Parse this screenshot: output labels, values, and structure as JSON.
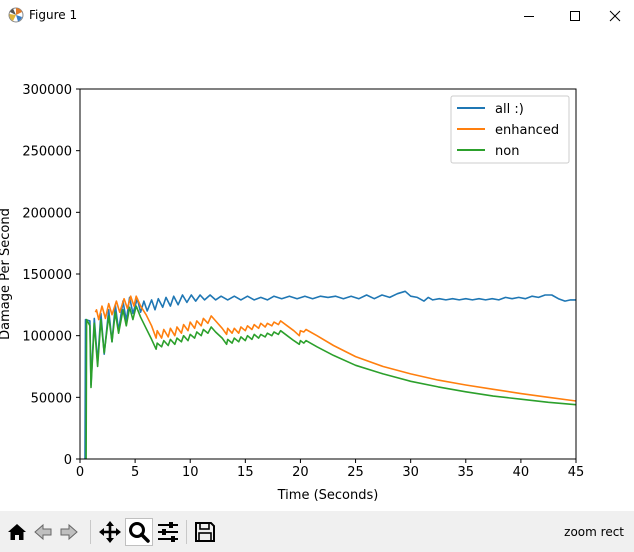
{
  "window": {
    "title": "Figure 1",
    "icons": {
      "app": "matplotlib-icon",
      "minimize": "minimize-icon",
      "maximize": "maximize-icon",
      "close": "close-icon"
    }
  },
  "toolbar": {
    "items": [
      {
        "name": "home",
        "icon": "home-icon"
      },
      {
        "name": "back",
        "icon": "back-arrow-icon"
      },
      {
        "name": "forward",
        "icon": "forward-arrow-icon"
      },
      {
        "name": "pan",
        "icon": "move-arrows-icon"
      },
      {
        "name": "zoom",
        "icon": "magnifier-icon",
        "active": true
      },
      {
        "name": "configure",
        "icon": "sliders-icon"
      },
      {
        "name": "save",
        "icon": "floppy-disk-icon"
      }
    ],
    "status": "zoom rect"
  },
  "chart_data": {
    "type": "line",
    "title": "",
    "xlabel": "Time (Seconds)",
    "ylabel": "Damage Per Second",
    "xlim": [
      0,
      45
    ],
    "ylim": [
      0,
      300000
    ],
    "xticks": [
      0,
      5,
      10,
      15,
      20,
      25,
      30,
      35,
      40,
      45
    ],
    "yticks": [
      0,
      50000,
      100000,
      150000,
      200000,
      250000,
      300000
    ],
    "grid": false,
    "legend_position": "top-right",
    "series": [
      {
        "name": "all :)",
        "color": "#1f77b4",
        "points": [
          [
            0.45,
            0
          ],
          [
            0.5,
            113000
          ],
          [
            0.9,
            112000
          ],
          [
            1.0,
            60000
          ],
          [
            1.3,
            114000
          ],
          [
            1.6,
            78000
          ],
          [
            1.9,
            118000
          ],
          [
            2.2,
            85000
          ],
          [
            2.6,
            121000
          ],
          [
            2.9,
            95000
          ],
          [
            3.2,
            125000
          ],
          [
            3.5,
            104000
          ],
          [
            3.9,
            128000
          ],
          [
            4.2,
            112000
          ],
          [
            4.5,
            131000
          ],
          [
            4.8,
            118000
          ],
          [
            5.2,
            130000
          ],
          [
            5.5,
            119000
          ],
          [
            5.8,
            128000
          ],
          [
            6.1,
            120000
          ],
          [
            6.5,
            129000
          ],
          [
            6.8,
            121000
          ],
          [
            7.1,
            130000
          ],
          [
            7.5,
            123000
          ],
          [
            7.8,
            131000
          ],
          [
            8.2,
            124000
          ],
          [
            8.5,
            132000
          ],
          [
            8.9,
            125000
          ],
          [
            9.3,
            133000
          ],
          [
            9.7,
            127000
          ],
          [
            10.1,
            133000
          ],
          [
            10.5,
            128000
          ],
          [
            10.9,
            133000
          ],
          [
            11.3,
            129000
          ],
          [
            11.8,
            133000
          ],
          [
            12.3,
            129000
          ],
          [
            12.8,
            132000
          ],
          [
            13.4,
            129000
          ],
          [
            14.0,
            132000
          ],
          [
            14.6,
            129000
          ],
          [
            15.2,
            132000
          ],
          [
            15.8,
            129000
          ],
          [
            16.4,
            131000
          ],
          [
            17.0,
            129000
          ],
          [
            17.6,
            132000
          ],
          [
            18.3,
            130000
          ],
          [
            19.0,
            132000
          ],
          [
            19.7,
            130000
          ],
          [
            20.4,
            132000
          ],
          [
            21.1,
            130000
          ],
          [
            21.8,
            132000
          ],
          [
            22.5,
            131000
          ],
          [
            23.2,
            132000
          ],
          [
            23.9,
            130000
          ],
          [
            24.6,
            132000
          ],
          [
            25.3,
            130000
          ],
          [
            26.0,
            133000
          ],
          [
            26.7,
            130000
          ],
          [
            27.4,
            133000
          ],
          [
            28.1,
            131000
          ],
          [
            28.8,
            134000
          ],
          [
            29.5,
            136000
          ],
          [
            30.0,
            132000
          ],
          [
            30.6,
            131000
          ],
          [
            31.2,
            128000
          ],
          [
            31.6,
            131000
          ],
          [
            32.0,
            129000
          ],
          [
            32.6,
            130000
          ],
          [
            33.2,
            129000
          ],
          [
            33.8,
            130000
          ],
          [
            34.4,
            129000
          ],
          [
            35.0,
            130000
          ],
          [
            35.6,
            129000
          ],
          [
            36.2,
            130000
          ],
          [
            36.8,
            129000
          ],
          [
            37.4,
            130000
          ],
          [
            38.0,
            129000
          ],
          [
            38.6,
            131000
          ],
          [
            39.2,
            130000
          ],
          [
            39.8,
            131000
          ],
          [
            40.4,
            130000
          ],
          [
            41.0,
            132000
          ],
          [
            41.6,
            131000
          ],
          [
            42.2,
            133000
          ],
          [
            42.8,
            133000
          ],
          [
            43.4,
            130000
          ],
          [
            44.0,
            128000
          ],
          [
            44.5,
            129000
          ],
          [
            45.0,
            129000
          ]
        ]
      },
      {
        "name": "enhanced",
        "color": "#ff7f0e",
        "points": [
          [
            1.4,
            119000
          ],
          [
            1.5,
            121000
          ],
          [
            1.7,
            113000
          ],
          [
            2.0,
            124000
          ],
          [
            2.3,
            114000
          ],
          [
            2.6,
            126000
          ],
          [
            2.9,
            117000
          ],
          [
            3.3,
            128000
          ],
          [
            3.6,
            119000
          ],
          [
            4.0,
            130000
          ],
          [
            4.3,
            122000
          ],
          [
            4.6,
            132000
          ],
          [
            4.9,
            124000
          ],
          [
            5.1,
            132000
          ],
          [
            5.5,
            124000
          ],
          [
            6.0,
            117000
          ],
          [
            6.5,
            108000
          ],
          [
            6.9,
            98000
          ],
          [
            7.0,
            104000
          ],
          [
            7.4,
            98000
          ],
          [
            7.6,
            105000
          ],
          [
            8.0,
            99000
          ],
          [
            8.2,
            106000
          ],
          [
            8.6,
            100000
          ],
          [
            8.8,
            107000
          ],
          [
            9.2,
            102000
          ],
          [
            9.4,
            109000
          ],
          [
            9.8,
            104000
          ],
          [
            10.0,
            111000
          ],
          [
            10.4,
            106000
          ],
          [
            10.6,
            112000
          ],
          [
            11.0,
            108000
          ],
          [
            11.2,
            114000
          ],
          [
            11.6,
            110000
          ],
          [
            11.9,
            116000
          ],
          [
            12.3,
            112000
          ],
          [
            12.9,
            106000
          ],
          [
            13.3,
            101000
          ],
          [
            13.4,
            106000
          ],
          [
            13.8,
            102000
          ],
          [
            14.0,
            106000
          ],
          [
            14.4,
            102000
          ],
          [
            14.6,
            107000
          ],
          [
            15.0,
            104000
          ],
          [
            15.2,
            108000
          ],
          [
            15.6,
            105000
          ],
          [
            15.8,
            109000
          ],
          [
            16.2,
            106000
          ],
          [
            16.4,
            110000
          ],
          [
            16.8,
            107000
          ],
          [
            17.0,
            110000
          ],
          [
            17.4,
            108000
          ],
          [
            17.6,
            111000
          ],
          [
            18.0,
            109000
          ],
          [
            18.2,
            112000
          ],
          [
            18.8,
            108000
          ],
          [
            19.4,
            104000
          ],
          [
            19.9,
            100000
          ],
          [
            20.0,
            104000
          ],
          [
            20.3,
            103000
          ],
          [
            20.5,
            105000
          ],
          [
            21.5,
            100000
          ],
          [
            23.0,
            92000
          ],
          [
            25.0,
            83000
          ],
          [
            27.5,
            75000
          ],
          [
            30.0,
            69000
          ],
          [
            32.5,
            64000
          ],
          [
            35.0,
            60000
          ],
          [
            37.5,
            56500
          ],
          [
            40.0,
            53000
          ],
          [
            42.5,
            50000
          ],
          [
            45.0,
            47000
          ]
        ]
      },
      {
        "name": "non",
        "color": "#2ca02c",
        "points": [
          [
            0.55,
            0
          ],
          [
            0.6,
            113000
          ],
          [
            0.9,
            108000
          ],
          [
            1.0,
            58000
          ],
          [
            1.3,
            110000
          ],
          [
            1.6,
            75000
          ],
          [
            1.9,
            113000
          ],
          [
            2.2,
            86000
          ],
          [
            2.6,
            116000
          ],
          [
            2.9,
            95000
          ],
          [
            3.2,
            119000
          ],
          [
            3.5,
            102000
          ],
          [
            3.9,
            121000
          ],
          [
            4.2,
            108000
          ],
          [
            4.5,
            123000
          ],
          [
            4.8,
            113000
          ],
          [
            5.1,
            124000
          ],
          [
            5.5,
            115000
          ],
          [
            6.0,
            106000
          ],
          [
            6.5,
            97000
          ],
          [
            6.9,
            89000
          ],
          [
            7.0,
            94000
          ],
          [
            7.4,
            91000
          ],
          [
            7.6,
            96000
          ],
          [
            8.0,
            92000
          ],
          [
            8.2,
            97000
          ],
          [
            8.6,
            93000
          ],
          [
            8.8,
            98000
          ],
          [
            9.2,
            95000
          ],
          [
            9.4,
            100000
          ],
          [
            9.8,
            96000
          ],
          [
            10.0,
            101000
          ],
          [
            10.4,
            98000
          ],
          [
            10.6,
            103000
          ],
          [
            11.0,
            100000
          ],
          [
            11.2,
            105000
          ],
          [
            11.6,
            102000
          ],
          [
            11.9,
            107000
          ],
          [
            12.3,
            103000
          ],
          [
            12.9,
            98000
          ],
          [
            13.3,
            93000
          ],
          [
            13.4,
            97000
          ],
          [
            13.8,
            94000
          ],
          [
            14.0,
            98000
          ],
          [
            14.4,
            95000
          ],
          [
            14.6,
            99000
          ],
          [
            15.0,
            96000
          ],
          [
            15.2,
            100000
          ],
          [
            15.6,
            97000
          ],
          [
            15.8,
            101000
          ],
          [
            16.2,
            98000
          ],
          [
            16.4,
            101000
          ],
          [
            16.8,
            99000
          ],
          [
            17.0,
            102000
          ],
          [
            17.4,
            100000
          ],
          [
            17.6,
            103000
          ],
          [
            18.0,
            101000
          ],
          [
            18.2,
            104000
          ],
          [
            18.8,
            100000
          ],
          [
            19.4,
            96000
          ],
          [
            19.9,
            93000
          ],
          [
            20.0,
            96000
          ],
          [
            20.3,
            94000
          ],
          [
            20.5,
            96000
          ],
          [
            21.5,
            91000
          ],
          [
            23.0,
            84000
          ],
          [
            25.0,
            76000
          ],
          [
            27.5,
            69000
          ],
          [
            30.0,
            63000
          ],
          [
            32.5,
            58500
          ],
          [
            35.0,
            54500
          ],
          [
            37.5,
            51000
          ],
          [
            40.0,
            48500
          ],
          [
            42.5,
            46000
          ],
          [
            45.0,
            44000
          ]
        ]
      }
    ]
  }
}
